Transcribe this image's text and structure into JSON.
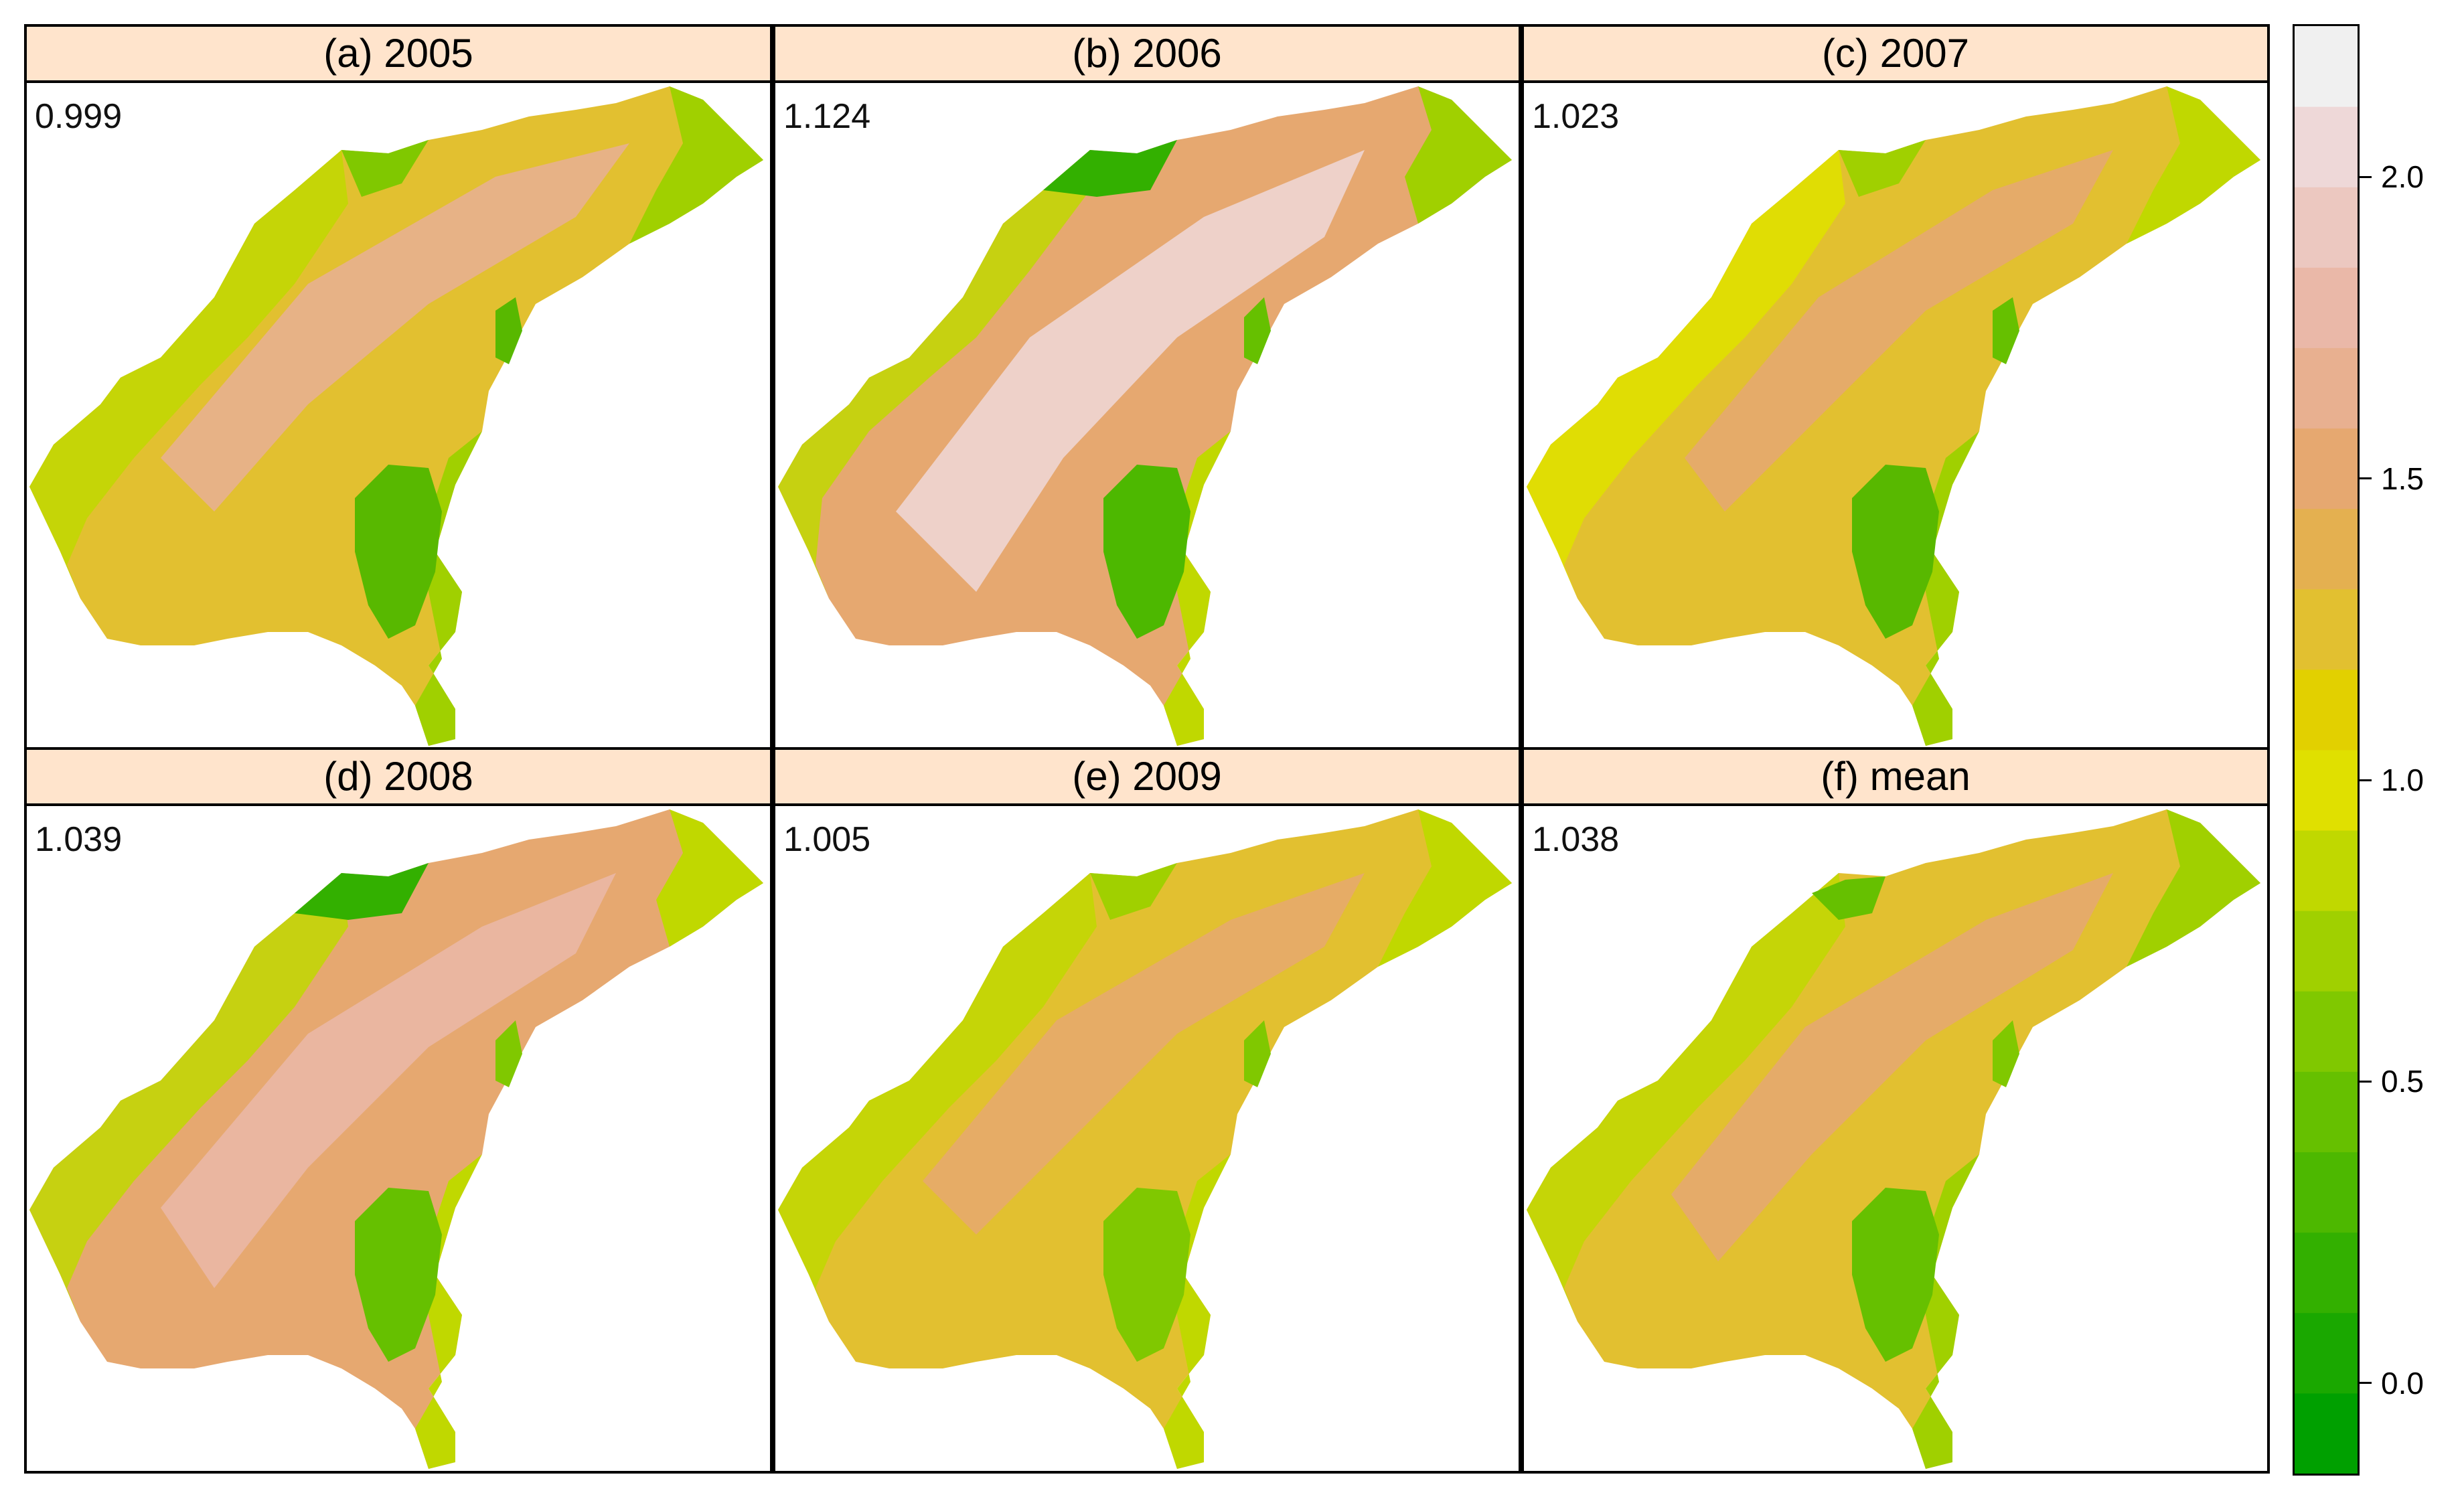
{
  "panels": [
    {
      "title": "(a) 2005",
      "value": "0.999"
    },
    {
      "title": "(b) 2006",
      "value": "1.124"
    },
    {
      "title": "(c) 2007",
      "value": "1.023"
    },
    {
      "title": "(d) 2008",
      "value": "1.039"
    },
    {
      "title": "(e) 2009",
      "value": "1.005"
    },
    {
      "title": "(f) mean",
      "value": "1.038"
    }
  ],
  "legend": {
    "ticks": [
      "0.0",
      "0.5",
      "1.0",
      "1.5",
      "2.0"
    ],
    "tick_values": [
      0.0,
      0.5,
      1.0,
      1.5,
      2.0
    ],
    "range": [
      -0.15,
      2.25
    ],
    "colors": [
      "#00a000",
      "#1aa800",
      "#33b000",
      "#4db800",
      "#66c000",
      "#80c800",
      "#a0d000",
      "#c0d800",
      "#e0e000",
      "#e2d000",
      "#e2c030",
      "#e4b050",
      "#e6a870",
      "#e8b090",
      "#eab8a8",
      "#ecc8c0",
      "#eed8d8",
      "#f0f0f0"
    ]
  },
  "colors": {
    "strip": "#ffe4cc",
    "low": "#33b000",
    "mid_low": "#a0d000",
    "mid": "#e0e000",
    "mid_high": "#e2c030",
    "high": "#e6a870",
    "very_high": "#eab8a8",
    "lake": "#58b800"
  }
}
